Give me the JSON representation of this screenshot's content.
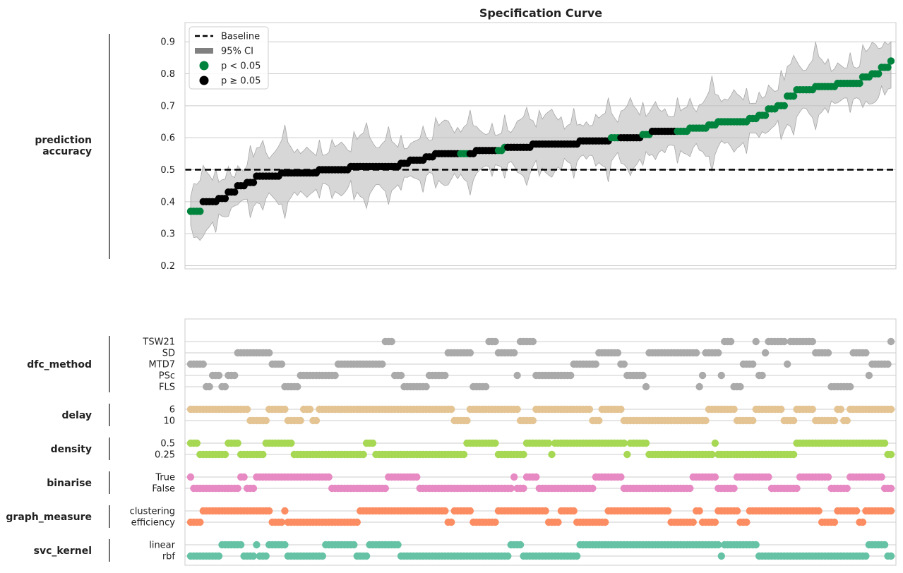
{
  "chart_data": {
    "type": "scatter",
    "title": "Specification Curve",
    "n_specifications": 224,
    "top_panel": {
      "ylabel": "prediction\naccuracy",
      "ylim": [
        0.19,
        0.96
      ],
      "yticks": [
        0.2,
        0.3,
        0.4,
        0.5,
        0.6,
        0.7,
        0.8,
        0.9
      ],
      "grid": true,
      "baseline": 0.5,
      "legend_position": "top-left",
      "legend": [
        {
          "label": "Baseline",
          "marker": "dashed-line",
          "color": "#000000"
        },
        {
          "label": "95% CI",
          "marker": "band",
          "color": "#808080"
        },
        {
          "label": "p < 0.05",
          "marker": "dot",
          "color": "#00843d"
        },
        {
          "label": "p ≥ 0.05",
          "marker": "dot",
          "color": "#000000"
        }
      ],
      "curve_knots": [
        [
          0,
          0.37
        ],
        [
          3,
          0.37
        ],
        [
          4,
          0.4
        ],
        [
          8,
          0.4
        ],
        [
          9,
          0.41
        ],
        [
          11,
          0.41
        ],
        [
          12,
          0.43
        ],
        [
          14,
          0.43
        ],
        [
          15,
          0.45
        ],
        [
          17,
          0.45
        ],
        [
          18,
          0.46
        ],
        [
          20,
          0.46
        ],
        [
          21,
          0.48
        ],
        [
          28,
          0.48
        ],
        [
          29,
          0.49
        ],
        [
          40,
          0.49
        ],
        [
          41,
          0.5
        ],
        [
          50,
          0.5
        ],
        [
          51,
          0.51
        ],
        [
          66,
          0.51
        ],
        [
          67,
          0.52
        ],
        [
          69,
          0.52
        ],
        [
          70,
          0.53
        ],
        [
          74,
          0.53
        ],
        [
          75,
          0.54
        ],
        [
          77,
          0.54
        ],
        [
          78,
          0.55
        ],
        [
          90,
          0.55
        ],
        [
          91,
          0.56
        ],
        [
          99,
          0.56
        ],
        [
          100,
          0.57
        ],
        [
          108,
          0.57
        ],
        [
          109,
          0.58
        ],
        [
          123,
          0.58
        ],
        [
          124,
          0.59
        ],
        [
          133,
          0.59
        ],
        [
          134,
          0.6
        ],
        [
          143,
          0.6
        ],
        [
          144,
          0.61
        ],
        [
          146,
          0.61
        ],
        [
          147,
          0.62
        ],
        [
          158,
          0.62
        ],
        [
          159,
          0.63
        ],
        [
          164,
          0.63
        ],
        [
          165,
          0.64
        ],
        [
          167,
          0.64
        ],
        [
          168,
          0.65
        ],
        [
          177,
          0.65
        ],
        [
          178,
          0.66
        ],
        [
          180,
          0.66
        ],
        [
          181,
          0.67
        ],
        [
          183,
          0.67
        ],
        [
          184,
          0.69
        ],
        [
          186,
          0.69
        ],
        [
          187,
          0.7
        ],
        [
          189,
          0.7
        ],
        [
          190,
          0.73
        ],
        [
          192,
          0.73
        ],
        [
          193,
          0.75
        ],
        [
          198,
          0.75
        ],
        [
          199,
          0.76
        ],
        [
          205,
          0.76
        ],
        [
          206,
          0.77
        ],
        [
          213,
          0.77
        ],
        [
          214,
          0.79
        ],
        [
          216,
          0.79
        ],
        [
          217,
          0.8
        ],
        [
          219,
          0.8
        ],
        [
          220,
          0.82
        ],
        [
          222,
          0.82
        ],
        [
          223,
          0.84
        ]
      ],
      "significant_ranges": [
        [
          0,
          3
        ],
        [
          86,
          88
        ],
        [
          98,
          100
        ],
        [
          134,
          136
        ],
        [
          144,
          146
        ],
        [
          155,
          165
        ],
        [
          166,
          223
        ]
      ]
    },
    "bottom_panel": {
      "groups": [
        {
          "name": "dfc_method",
          "color": "#aaaaaa",
          "levels": [
            "TSW21",
            "SD",
            "MTD7",
            "PSc",
            "FLS"
          ]
        },
        {
          "name": "delay",
          "color": "#e5c494",
          "levels": [
            "6",
            "10"
          ]
        },
        {
          "name": "density",
          "color": "#a6d854",
          "levels": [
            "0.5",
            "0.25"
          ]
        },
        {
          "name": "binarise",
          "color": "#e78ac3",
          "levels": [
            "True",
            "False"
          ]
        },
        {
          "name": "graph_measure",
          "color": "#fc8d62",
          "levels": [
            "clustering",
            "efficiency"
          ]
        },
        {
          "name": "svc_kernel",
          "color": "#66c2a5",
          "levels": [
            "linear",
            "rbf"
          ]
        }
      ]
    }
  }
}
